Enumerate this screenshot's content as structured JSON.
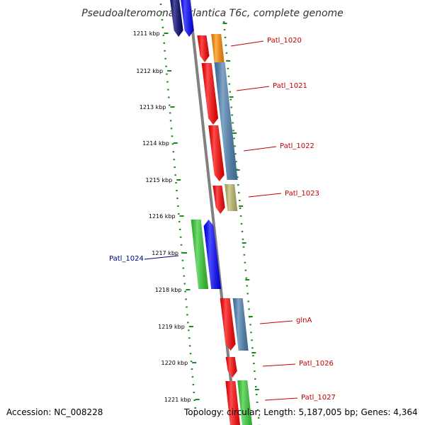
{
  "header": {
    "title": "Pseudoalteromonas atlantica T6c, complete genome"
  },
  "footer": {
    "accession": "Accession: NC_008228",
    "topology": "Topology: circular; Length: 5,187,005 bp; Genes: 4,364"
  },
  "colors": {
    "backbone": "#808080",
    "ruler": "#1a8a1a",
    "label_red": "#c00000",
    "label_blue": "#00008b",
    "cds_red": "#ff0000",
    "cds_blue": "#0000ff",
    "cds_navy": "#00006e",
    "cds_green": "#33cc33",
    "cds_steel": "#4a7fb0",
    "cds_orange": "#ff8c00",
    "cds_khaki": "#bdb76b",
    "cds_lavender": "#c8c8f0"
  },
  "chart_data": {
    "type": "genome-map",
    "ruler_ticks": [
      {
        "label": "1211 kbp"
      },
      {
        "label": "1212 kbp"
      },
      {
        "label": "1213 kbp"
      },
      {
        "label": "1214 kbp"
      },
      {
        "label": "1215 kbp"
      },
      {
        "label": "1216 kbp"
      },
      {
        "label": "1217 kbp"
      },
      {
        "label": "1218 kbp"
      },
      {
        "label": "1219 kbp"
      },
      {
        "label": "1220 kbp"
      },
      {
        "label": "1221 kbp"
      }
    ],
    "gene_labels": [
      {
        "text": "Patl_1020",
        "strand": "+"
      },
      {
        "text": "Patl_1021",
        "strand": "+"
      },
      {
        "text": "Patl_1022",
        "strand": "+"
      },
      {
        "text": "Patl_1023",
        "strand": "+"
      },
      {
        "text": "Patl_1024",
        "strand": "-"
      },
      {
        "text": "glnA",
        "strand": "+"
      },
      {
        "text": "Patl_1026",
        "strand": "+"
      },
      {
        "text": "Patl_1027",
        "strand": "+"
      }
    ]
  }
}
